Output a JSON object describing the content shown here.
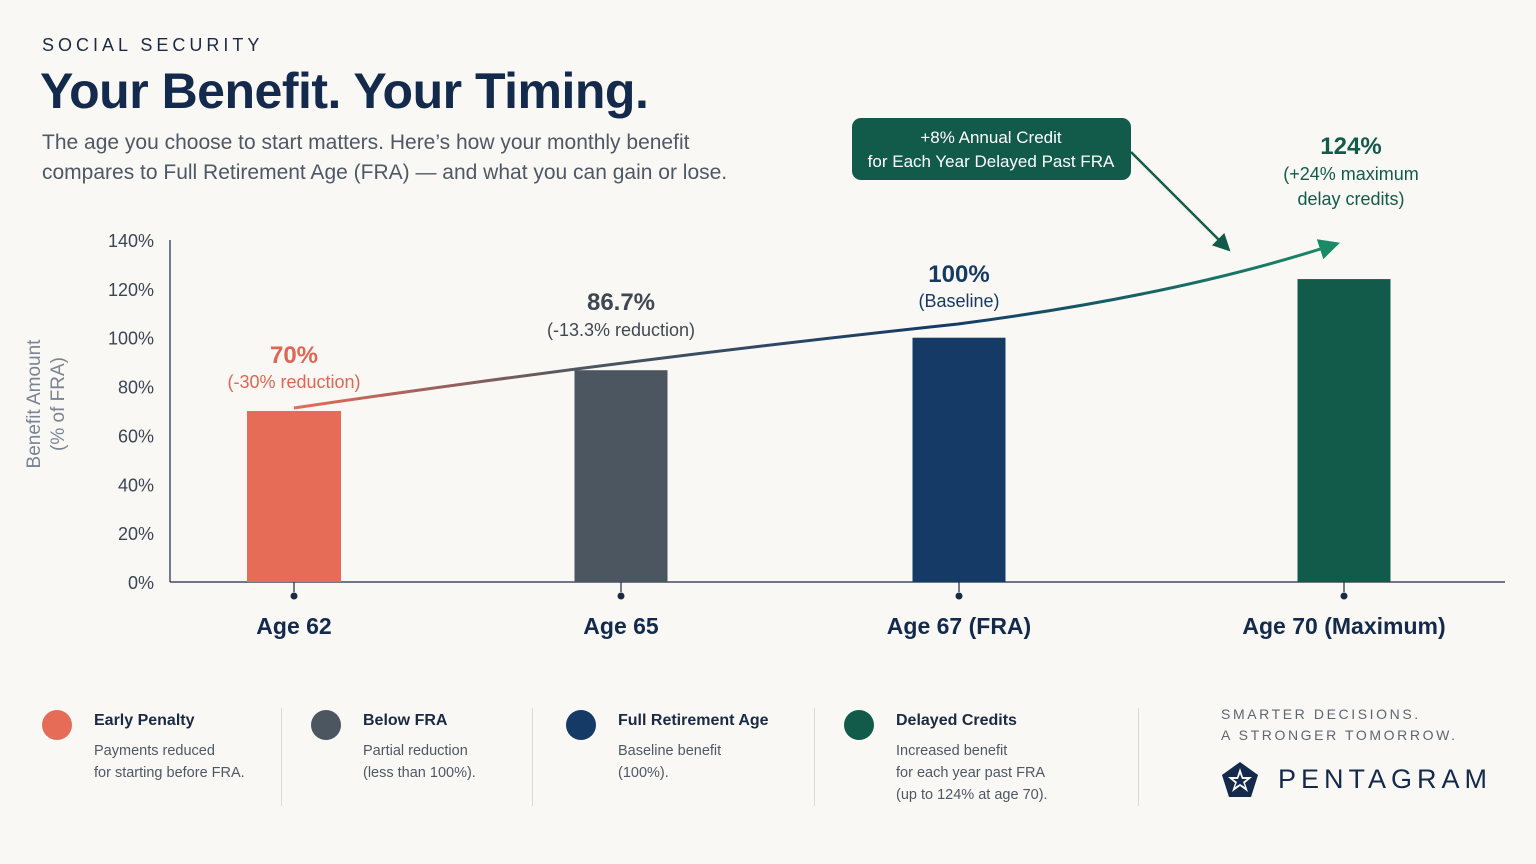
{
  "header": {
    "eyebrow": "SOCIAL SECURITY",
    "title": "Your Benefit. Your Timing.",
    "subtitle_line1": "The age you choose to start matters. Here’s how your monthly benefit",
    "subtitle_line2": "compares to Full Retirement Age (FRA) — and what you can gain or lose."
  },
  "chart_data": {
    "type": "bar",
    "ylabel_line1": "Benefit Amount",
    "ylabel_line2": "(% of FRA)",
    "ylim": [
      0,
      140
    ],
    "yticks": [
      0,
      20,
      40,
      60,
      80,
      100,
      120,
      140
    ],
    "ytick_labels": [
      "0%",
      "20%",
      "40%",
      "60%",
      "80%",
      "100%",
      "120%",
      "140%"
    ],
    "categories": [
      "Age 62",
      "Age 65",
      "Age 67 (FRA)",
      "Age 70 (Maximum)"
    ],
    "values": [
      70,
      86.7,
      100,
      124
    ],
    "bar_colors": [
      "#e76c58",
      "#4b5661",
      "#153a66",
      "#125b4b"
    ],
    "data_labels": [
      {
        "value": "70%",
        "note": "(-30% reduction)",
        "color": "#e06552"
      },
      {
        "value": "86.7%",
        "note": "(-13.3% reduction)",
        "color": "#3e4853"
      },
      {
        "value": "100%",
        "note": "(Baseline)",
        "color": "#153a66"
      },
      {
        "value": "124%",
        "note_line1": "(+24% maximum",
        "note_line2": "delay credits)",
        "color": "#125b4b"
      }
    ],
    "callout_line1": "+8% Annual Credit",
    "callout_line2": "for Each Year Delayed Past FRA",
    "callout_color": "#125b4b",
    "grid": false
  },
  "legend": [
    {
      "title": "Early Penalty",
      "lines": [
        "Payments reduced",
        "for starting before FRA."
      ],
      "color": "#e76c58"
    },
    {
      "title": "Below FRA",
      "lines": [
        "Partial reduction",
        "(less than 100%)."
      ],
      "color": "#4b5661"
    },
    {
      "title": "Full Retirement Age",
      "lines": [
        "Baseline benefit",
        "(100%)."
      ],
      "color": "#153a66"
    },
    {
      "title": "Delayed Credits",
      "lines": [
        "Increased benefit",
        "for each year past FRA",
        "(up to 124% at age 70)."
      ],
      "color": "#125b4b"
    }
  ],
  "brand": {
    "tagline_line1": "SMARTER DECISIONS.",
    "tagline_line2": "A STRONGER TOMORROW.",
    "name": "PENTAGRAM",
    "logo_icon": "pentagram-star-icon"
  }
}
